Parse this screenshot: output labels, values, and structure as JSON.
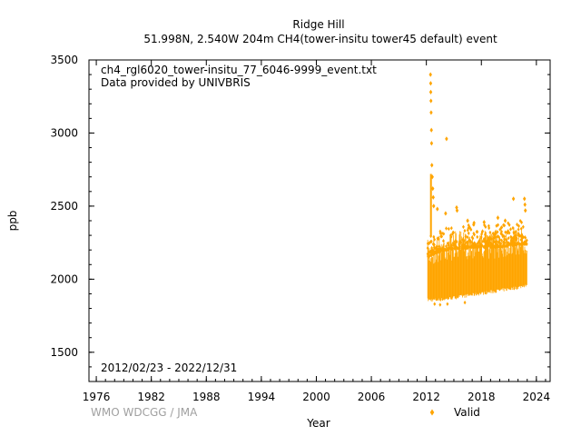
{
  "chart_data": {
    "type": "scatter",
    "title_lines": [
      "Ridge Hill",
      "51.998N, 2.540W 204m    CH4(tower-insitu tower45 default) event"
    ],
    "annotations": [
      "ch4_rgl6020_tower-insitu_77_6046-9999_event.txt",
      "Data provided by UNIVBRIS"
    ],
    "date_range": "2012/02/23 - 2022/12/31",
    "xlabel": "Year",
    "ylabel": "ppb",
    "credit": "WMO WDCGG / JMA",
    "xlim": [
      1975.2,
      2025.5
    ],
    "ylim": [
      1300,
      3500
    ],
    "x_ticks": [
      1976,
      1982,
      1988,
      1994,
      2000,
      2006,
      2012,
      2018,
      2024
    ],
    "y_ticks": [
      1500,
      2000,
      2500,
      3000,
      3500
    ],
    "series": [
      {
        "name": "Valid",
        "color": "#ffa500",
        "marker": "diamond",
        "x_range": [
          2012.15,
          2023.0
        ],
        "band": [
          {
            "x": 2012.15,
            "low": 1845,
            "high": 2270
          },
          {
            "x": 2013.0,
            "low": 1845,
            "high": 2300
          },
          {
            "x": 2014.0,
            "low": 1850,
            "high": 2320
          },
          {
            "x": 2015.0,
            "low": 1860,
            "high": 2330
          },
          {
            "x": 2016.0,
            "low": 1870,
            "high": 2330
          },
          {
            "x": 2017.0,
            "low": 1880,
            "high": 2340
          },
          {
            "x": 2018.0,
            "low": 1890,
            "high": 2340
          },
          {
            "x": 2019.0,
            "low": 1900,
            "high": 2340
          },
          {
            "x": 2020.0,
            "low": 1910,
            "high": 2340
          },
          {
            "x": 2021.0,
            "low": 1920,
            "high": 2350
          },
          {
            "x": 2022.0,
            "low": 1930,
            "high": 2360
          },
          {
            "x": 2023.0,
            "low": 1950,
            "high": 2360
          }
        ],
        "spikes": [
          {
            "x": 2012.45,
            "y": 3400
          },
          {
            "x": 2012.47,
            "y": 3340
          },
          {
            "x": 2012.48,
            "y": 3280
          },
          {
            "x": 2012.5,
            "y": 3220
          },
          {
            "x": 2012.52,
            "y": 3140
          },
          {
            "x": 2012.55,
            "y": 3020
          },
          {
            "x": 2012.57,
            "y": 2930
          },
          {
            "x": 2014.2,
            "y": 2960
          },
          {
            "x": 2012.6,
            "y": 2780
          },
          {
            "x": 2012.65,
            "y": 2700
          },
          {
            "x": 2012.7,
            "y": 2620
          },
          {
            "x": 2012.75,
            "y": 2560
          },
          {
            "x": 2012.8,
            "y": 2500
          },
          {
            "x": 2013.2,
            "y": 2480
          },
          {
            "x": 2014.1,
            "y": 2450
          },
          {
            "x": 2015.3,
            "y": 2490
          },
          {
            "x": 2015.35,
            "y": 2470
          },
          {
            "x": 2019.8,
            "y": 2420
          },
          {
            "x": 2021.5,
            "y": 2550
          },
          {
            "x": 2022.7,
            "y": 2550
          },
          {
            "x": 2022.75,
            "y": 2510
          },
          {
            "x": 2022.8,
            "y": 2470
          },
          {
            "x": 2016.5,
            "y": 2400
          },
          {
            "x": 2018.3,
            "y": 2390
          },
          {
            "x": 2017.2,
            "y": 2385
          },
          {
            "x": 2020.6,
            "y": 2400
          }
        ],
        "lows": [
          {
            "x": 2012.9,
            "y": 1830
          },
          {
            "x": 2013.5,
            "y": 1825
          },
          {
            "x": 2014.3,
            "y": 1830
          },
          {
            "x": 2016.2,
            "y": 1840
          }
        ]
      }
    ],
    "legend": {
      "placement": "bottom-right",
      "entries": [
        "Valid"
      ]
    },
    "grid": false
  }
}
